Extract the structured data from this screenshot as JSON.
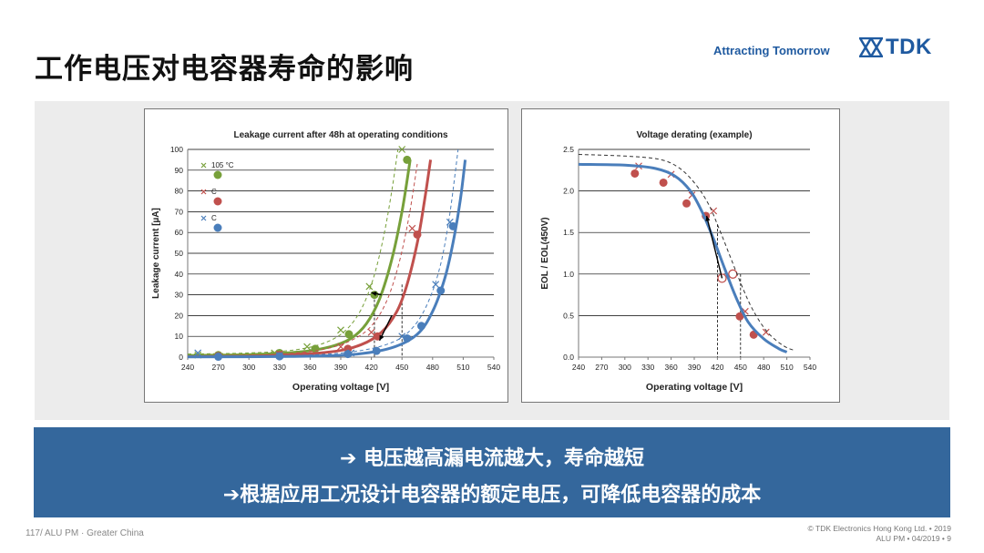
{
  "slide": {
    "title": "工作电压对电容器寿命的影响",
    "tagline": "Attracting Tomorrow",
    "logo_text": "TDK",
    "brand_color": "#1f5aa0",
    "band_color": "#34679c",
    "conclusions": [
      "➔  电压越高漏电流越大，寿命越短",
      "➔根据应用工况设计电容器的额定电压，可降低电容器的成本"
    ],
    "footer_left": "117/ ALU PM · Greater China",
    "footer_right_1": "© TDK Electronics Hong Kong Ltd. • 2019",
    "footer_right_2": "ALU PM • 04/2019 • 9"
  },
  "chart_data": [
    {
      "type": "scatter",
      "title": "Leakage current after 48h at operating conditions",
      "xlabel": "Operating voltage [V]",
      "ylabel": "Leakage current [µA]",
      "xlim": [
        240,
        540
      ],
      "ylim": [
        0,
        100
      ],
      "xticks": [
        240,
        270,
        300,
        330,
        360,
        390,
        420,
        450,
        480,
        510,
        540
      ],
      "yticks": [
        0,
        10,
        20,
        30,
        40,
        50,
        60,
        70,
        80,
        90,
        100
      ],
      "grid": "horizontal",
      "legend": [
        {
          "label": "105 °C",
          "color": "#77a03a"
        },
        {
          "label": "C",
          "color": "#c0504d"
        },
        {
          "label": "C",
          "color": "#4a7ebb"
        }
      ],
      "series": [
        {
          "color": "#77a03a",
          "points": [
            [
              270,
              1
            ],
            [
              330,
              2
            ],
            [
              365,
              4
            ],
            [
              398,
              11
            ],
            [
              423,
              30
            ],
            [
              455,
              95
            ]
          ],
          "crosses": [
            [
              250,
              1
            ],
            [
              325,
              2
            ],
            [
              357,
              5
            ],
            [
              390,
              13
            ],
            [
              418,
              34
            ],
            [
              450,
              100
            ]
          ],
          "fit": [
            [
              240,
              0.8
            ],
            [
              300,
              1.2
            ],
            [
              350,
              2.5
            ],
            [
              380,
              5
            ],
            [
              400,
              9
            ],
            [
              415,
              16
            ],
            [
              428,
              28
            ],
            [
              440,
              47
            ],
            [
              450,
              70
            ],
            [
              458,
              95
            ]
          ],
          "fit_dashed": [
            [
              240,
              1.5
            ],
            [
              300,
              2
            ],
            [
              345,
              3.5
            ],
            [
              375,
              7
            ],
            [
              395,
              13
            ],
            [
              410,
              23
            ],
            [
              422,
              38
            ],
            [
              432,
              58
            ],
            [
              440,
              80
            ],
            [
              446,
              100
            ]
          ]
        },
        {
          "color": "#c0504d",
          "points": [
            [
              270,
              0.5
            ],
            [
              330,
              1
            ],
            [
              397,
              4
            ],
            [
              426,
              10
            ],
            [
              465,
              59
            ]
          ],
          "crosses": [
            [
              330,
              1.5
            ],
            [
              390,
              5
            ],
            [
              420,
              12
            ],
            [
              460,
              62
            ]
          ],
          "fit": [
            [
              240,
              0.2
            ],
            [
              320,
              0.7
            ],
            [
              380,
              2.5
            ],
            [
              410,
              6
            ],
            [
              430,
              12
            ],
            [
              445,
              22
            ],
            [
              455,
              35
            ],
            [
              465,
              55
            ],
            [
              472,
              75
            ],
            [
              478,
              95
            ]
          ],
          "fit_dashed": [
            [
              240,
              0.6
            ],
            [
              320,
              1.2
            ],
            [
              370,
              3.5
            ],
            [
              400,
              8
            ],
            [
              420,
              15
            ],
            [
              435,
              27
            ],
            [
              447,
              45
            ],
            [
              457,
              68
            ],
            [
              465,
              93
            ]
          ]
        },
        {
          "color": "#4a7ebb",
          "points": [
            [
              270,
              0.2
            ],
            [
              330,
              0.4
            ],
            [
              397,
              1.5
            ],
            [
              425,
              3
            ],
            [
              455,
              9
            ],
            [
              469,
              15
            ],
            [
              488,
              32
            ],
            [
              500,
              63
            ]
          ],
          "crosses": [
            [
              250,
              2
            ],
            [
              330,
              0.8
            ],
            [
              400,
              2
            ],
            [
              450,
              10
            ],
            [
              483,
              35
            ],
            [
              497,
              65
            ]
          ],
          "fit": [
            [
              240,
              0.1
            ],
            [
              340,
              0.3
            ],
            [
              400,
              1.2
            ],
            [
              440,
              4.5
            ],
            [
              465,
              11
            ],
            [
              480,
              22
            ],
            [
              492,
              38
            ],
            [
              500,
              55
            ],
            [
              507,
              75
            ],
            [
              512,
              95
            ]
          ],
          "fit_dashed": [
            [
              240,
              0.3
            ],
            [
              340,
              0.7
            ],
            [
              400,
              2.5
            ],
            [
              440,
              7
            ],
            [
              462,
              15
            ],
            [
              477,
              28
            ],
            [
              488,
              45
            ],
            [
              496,
              66
            ],
            [
              502,
              88
            ],
            [
              505,
              100
            ]
          ]
        }
      ]
    },
    {
      "type": "scatter",
      "title": "Voltage derating (example)",
      "xlabel": "Operating voltage [V]",
      "ylabel": "EOL / EOL(450V)",
      "xlim": [
        240,
        540
      ],
      "ylim": [
        0,
        2.5
      ],
      "xticks": [
        240,
        270,
        300,
        330,
        360,
        390,
        420,
        450,
        480,
        510,
        540
      ],
      "yticks": [
        0,
        0.5,
        1.0,
        1.5,
        2.0,
        2.5
      ],
      "ytick_labels": [
        "0.0",
        "0.5",
        "1.0",
        "1.5",
        "2.0",
        "2.5"
      ],
      "grid": "horizontal",
      "series": [
        {
          "color": "#c0504d",
          "points": [
            [
              313,
              2.21
            ],
            [
              350,
              2.1
            ],
            [
              380,
              1.85
            ],
            [
              405,
              1.7
            ],
            [
              449,
              0.49
            ],
            [
              467,
              0.27
            ]
          ],
          "crosses": [
            [
              318,
              2.3
            ],
            [
              360,
              2.2
            ],
            [
              387,
              1.95
            ],
            [
              415,
              1.76
            ],
            [
              456,
              0.55
            ],
            [
              483,
              0.3
            ]
          ],
          "open_points": [
            [
              426,
              0.95
            ],
            [
              440,
              1.0
            ]
          ]
        },
        {
          "color": "#4a7ebb",
          "fit": [
            [
              240,
              2.32
            ],
            [
              300,
              2.31
            ],
            [
              340,
              2.27
            ],
            [
              365,
              2.18
            ],
            [
              385,
              2.0
            ],
            [
              400,
              1.75
            ],
            [
              415,
              1.42
            ],
            [
              430,
              1.05
            ],
            [
              445,
              0.7
            ],
            [
              460,
              0.42
            ],
            [
              480,
              0.22
            ],
            [
              500,
              0.1
            ],
            [
              510,
              0.06
            ]
          ]
        },
        {
          "color": "#333333",
          "fit_dashed": [
            [
              240,
              2.44
            ],
            [
              300,
              2.42
            ],
            [
              345,
              2.38
            ],
            [
              370,
              2.28
            ],
            [
              390,
              2.1
            ],
            [
              408,
              1.85
            ],
            [
              422,
              1.55
            ],
            [
              437,
              1.2
            ],
            [
              452,
              0.85
            ],
            [
              467,
              0.55
            ],
            [
              485,
              0.3
            ],
            [
              505,
              0.14
            ],
            [
              520,
              0.08
            ]
          ]
        }
      ]
    }
  ]
}
